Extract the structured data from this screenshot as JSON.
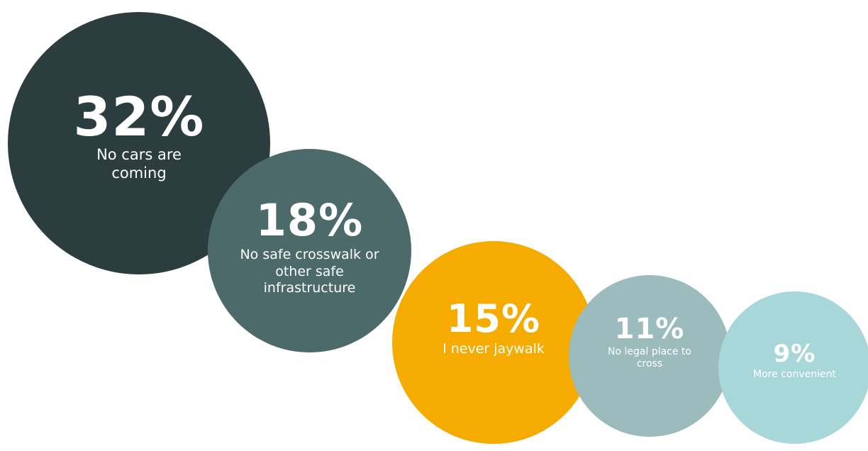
{
  "chart_data": {
    "type": "bubble",
    "title": "",
    "points": [
      {
        "value": 32,
        "display": "32%",
        "label": "No cars are coming",
        "color": "#2b3d3f",
        "text_color": "#ffffff"
      },
      {
        "value": 18,
        "display": "18%",
        "label": "No safe crosswalk or other safe infrastructure",
        "color": "#4d6a6b",
        "text_color": "#ffffff"
      },
      {
        "value": 15,
        "display": "15%",
        "label": "I never jaywalk",
        "color": "#f5ab00",
        "text_color": "#ffffff"
      },
      {
        "value": 11,
        "display": "11%",
        "label": "No legal place to cross",
        "color": "#9bbbbd",
        "text_color": "#ffffff"
      },
      {
        "value": 9,
        "display": "9%",
        "label": "More convenient",
        "color": "#a8d7d9",
        "text_color": "#ffffff"
      }
    ]
  }
}
